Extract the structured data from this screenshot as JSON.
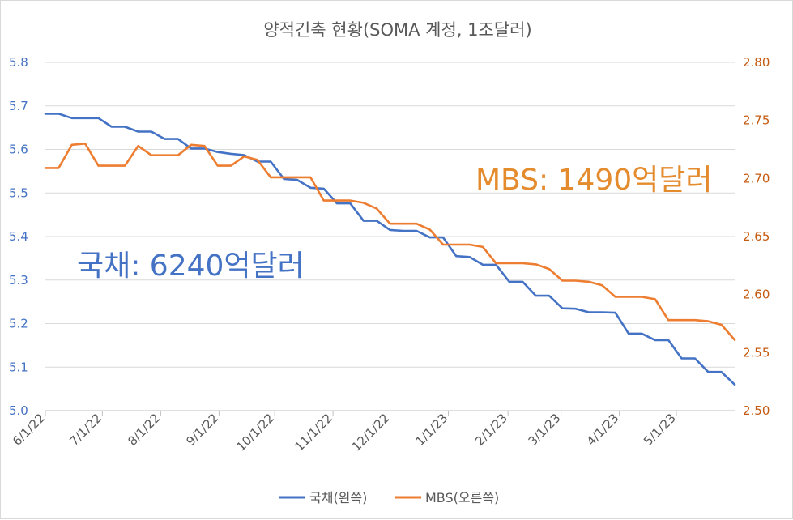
{
  "chart_data": {
    "type": "line",
    "title": "양적긴축 현황(SOMA 계정, 1조달러)",
    "x_tick_labels": [
      "6/1/22",
      "7/1/22",
      "8/1/22",
      "9/1/22",
      "10/1/22",
      "11/1/22",
      "12/1/22",
      "1/1/23",
      "2/1/23",
      "3/1/23",
      "4/1/23",
      "5/1/23"
    ],
    "left_axis": {
      "ylim": [
        5.0,
        5.8
      ],
      "ticks": [
        "5.0",
        "5.1",
        "5.2",
        "5.3",
        "5.4",
        "5.5",
        "5.6",
        "5.7",
        "5.8"
      ],
      "color": "#4472C4"
    },
    "right_axis": {
      "ylim": [
        2.5,
        2.8
      ],
      "ticks": [
        "2.50",
        "2.55",
        "2.60",
        "2.65",
        "2.70",
        "2.75",
        "2.80"
      ],
      "color": "#C55A11"
    },
    "series": [
      {
        "name": "국채(왼쪽)",
        "axis": "left",
        "color": "#4472C4",
        "values": [
          5.682,
          5.682,
          5.672,
          5.672,
          5.672,
          5.652,
          5.652,
          5.641,
          5.641,
          5.624,
          5.624,
          5.602,
          5.602,
          5.594,
          5.59,
          5.587,
          5.572,
          5.572,
          5.532,
          5.53,
          5.512,
          5.51,
          5.476,
          5.476,
          5.436,
          5.436,
          5.415,
          5.413,
          5.413,
          5.398,
          5.398,
          5.355,
          5.353,
          5.335,
          5.335,
          5.296,
          5.296,
          5.264,
          5.264,
          5.235,
          5.234,
          5.226,
          5.226,
          5.225,
          5.177,
          5.177,
          5.162,
          5.162,
          5.12,
          5.12,
          5.089,
          5.089,
          5.06
        ]
      },
      {
        "name": "MBS(오른쪽)",
        "axis": "right",
        "color": "#ED7D31",
        "values": [
          2.709,
          2.709,
          2.729,
          2.73,
          2.711,
          2.711,
          2.711,
          2.728,
          2.72,
          2.72,
          2.72,
          2.729,
          2.728,
          2.711,
          2.711,
          2.719,
          2.716,
          2.701,
          2.701,
          2.701,
          2.701,
          2.681,
          2.681,
          2.681,
          2.679,
          2.674,
          2.661,
          2.661,
          2.661,
          2.656,
          2.643,
          2.643,
          2.643,
          2.641,
          2.627,
          2.627,
          2.627,
          2.626,
          2.622,
          2.612,
          2.612,
          2.611,
          2.608,
          2.598,
          2.598,
          2.598,
          2.596,
          2.578,
          2.578,
          2.578,
          2.577,
          2.574,
          2.561
        ]
      }
    ],
    "annotations": {
      "treasury": "국채: 6240억달러",
      "mbs": "MBS: 1490억달러"
    },
    "legend": {
      "position": "bottom"
    },
    "grid": true
  }
}
